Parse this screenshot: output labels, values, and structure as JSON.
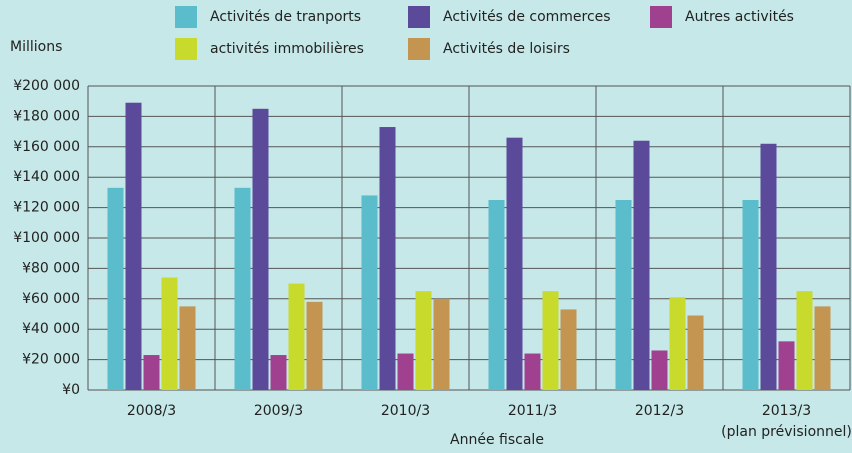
{
  "chart_data": {
    "type": "bar",
    "y_axis_label": "Millions",
    "x_axis_label": "Année fiscale",
    "categories": [
      "2008/3",
      "2009/3",
      "2010/3",
      "2011/3",
      "2012/3",
      "2013/3"
    ],
    "category_note": "(plan prévisionnel)",
    "series": [
      {
        "name": "Activités de tranports",
        "color": "#5bbccc",
        "values": [
          133000,
          133000,
          128000,
          125000,
          125000,
          125000
        ]
      },
      {
        "name": "Activités de commerces",
        "color": "#5b4a9a",
        "values": [
          189000,
          185000,
          173000,
          166000,
          164000,
          162000
        ]
      },
      {
        "name": "Autres activités",
        "color": "#a0418f",
        "values": [
          23000,
          23000,
          24000,
          24000,
          26000,
          32000
        ]
      },
      {
        "name": "activités immobilières",
        "color": "#c8da2b",
        "values": [
          74000,
          70000,
          65000,
          65000,
          61000,
          65000
        ]
      },
      {
        "name": "Activités de loisirs",
        "color": "#c39550",
        "values": [
          55000,
          58000,
          60000,
          53000,
          49000,
          55000
        ]
      }
    ],
    "ylim": [
      0,
      200000
    ],
    "yticks": [
      {
        "value": 0,
        "label": "¥0"
      },
      {
        "value": 20000,
        "label": "¥20 000"
      },
      {
        "value": 40000,
        "label": "¥40 000"
      },
      {
        "value": 60000,
        "label": "¥60 000"
      },
      {
        "value": 80000,
        "label": "¥80 000"
      },
      {
        "value": 100000,
        "label": "¥100 000"
      },
      {
        "value": 120000,
        "label": "¥120 000"
      },
      {
        "value": 140000,
        "label": "¥140 000"
      },
      {
        "value": 160000,
        "label": "¥160 000"
      },
      {
        "value": 180000,
        "label": "¥180 000"
      },
      {
        "value": 200000,
        "label": "¥200 000"
      }
    ],
    "grid": true,
    "legend_position": "top"
  }
}
